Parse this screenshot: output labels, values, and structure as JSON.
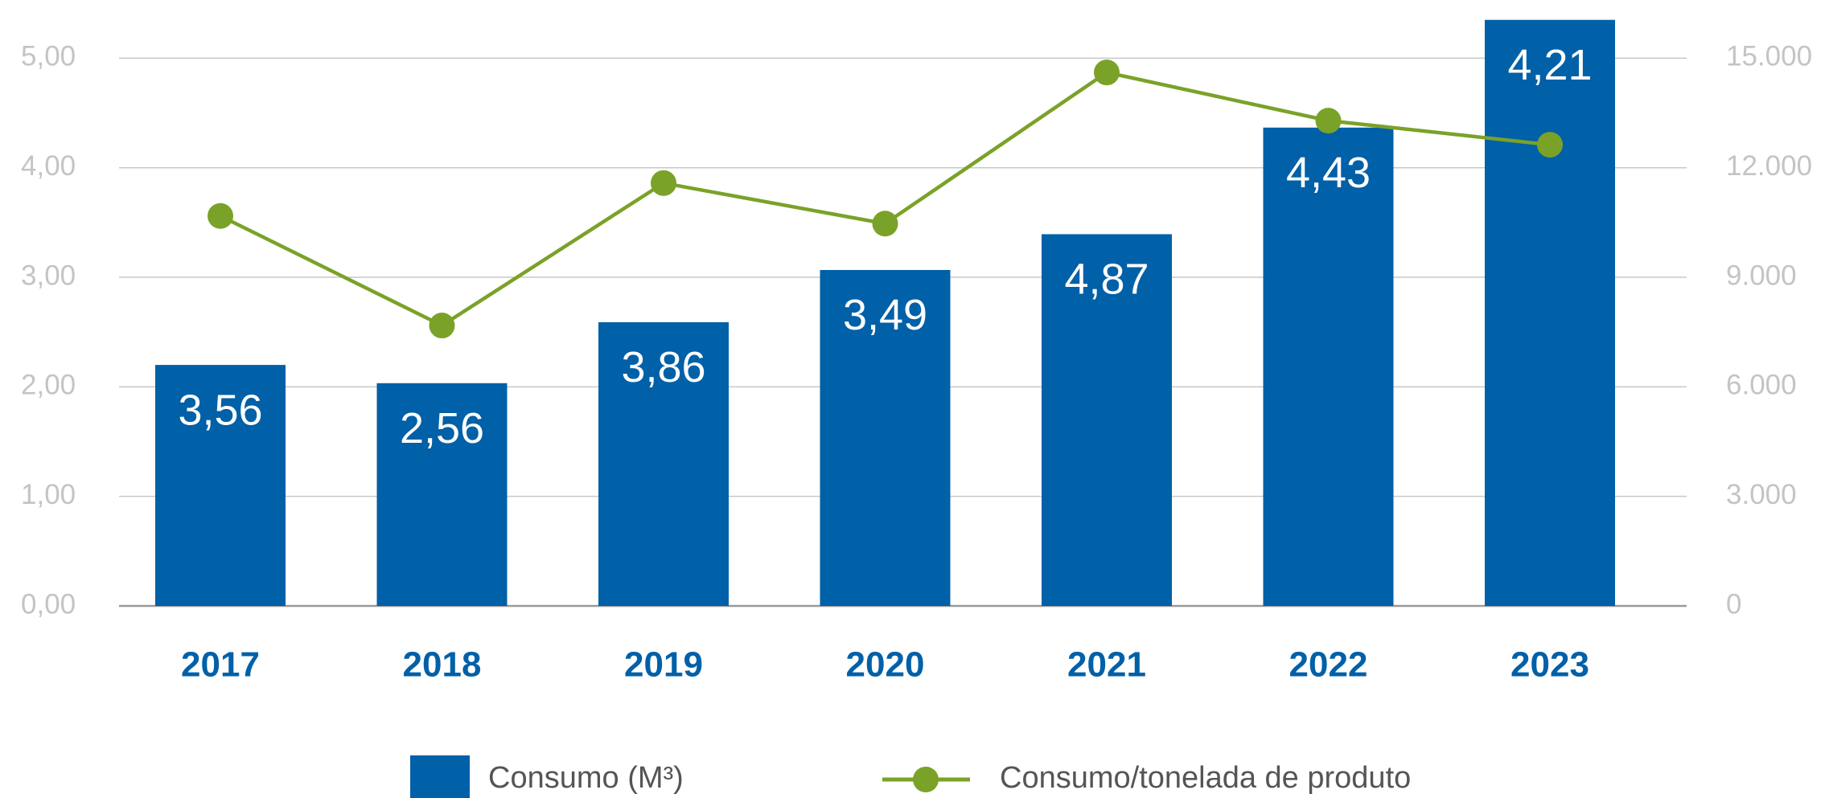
{
  "chart_data": {
    "type": "bar-line",
    "categories": [
      "2017",
      "2018",
      "2019",
      "2020",
      "2021",
      "2022",
      "2023"
    ],
    "series": [
      {
        "name": "Consumo (M³)",
        "color": "#0060a8",
        "type": "bar",
        "axis": "y2",
        "values": [
          6600,
          6100,
          7770,
          9200,
          10180,
          13100,
          16050
        ]
      },
      {
        "name": "Consumo/tonelada de produto",
        "color": "#7aa228",
        "type": "line",
        "axis": "y",
        "values": [
          3.56,
          2.56,
          3.86,
          3.49,
          4.87,
          4.43,
          4.21
        ],
        "value_labels": [
          "3,56",
          "2,56",
          "3,86",
          "3,49",
          "4,87",
          "4,43",
          "4,21"
        ]
      }
    ],
    "ylim": [
      0,
      5.37
    ],
    "yticks": [
      {
        "value": 0,
        "label": "0,00"
      },
      {
        "value": 1,
        "label": "1,00"
      },
      {
        "value": 2,
        "label": "2,00"
      },
      {
        "value": 3,
        "label": "3,00"
      },
      {
        "value": 4,
        "label": "4,00"
      },
      {
        "value": 5,
        "label": "5,00"
      }
    ],
    "y2lim": [
      0,
      16110
    ],
    "y2ticks": [
      0,
      {
        "value": 3000,
        "label": "3.000"
      },
      {
        "value": 6000,
        "label": "6.000"
      },
      {
        "value": 9000,
        "label": "9.000"
      },
      {
        "value": 12000,
        "label": "12.000"
      },
      {
        "value": 15000,
        "label": "15.000"
      }
    ],
    "grid": true,
    "legend": "bottom"
  }
}
